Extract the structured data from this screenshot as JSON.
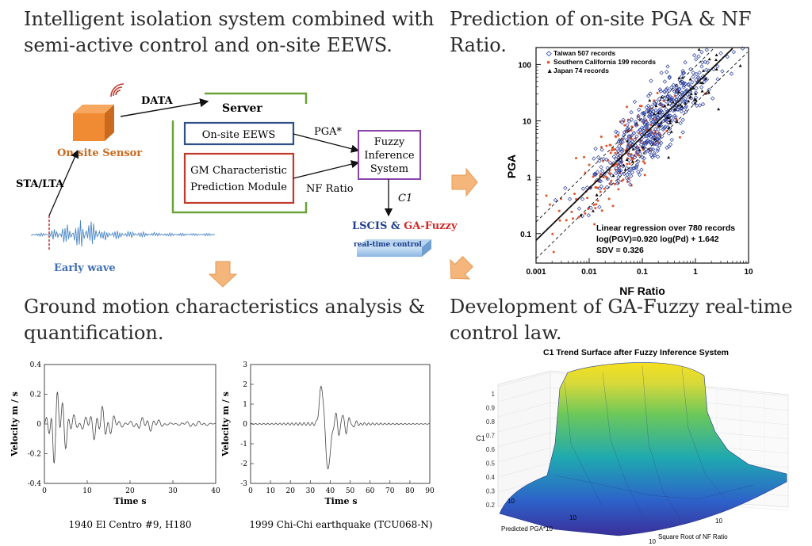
{
  "quadrant1": {
    "heading_line1": "Intelligent isolation system combined with",
    "heading_line2": "semi-active control and on-site EEWS.",
    "data_label": "DATA",
    "server_label": "Server",
    "sensor_label": "On-site Sensor",
    "sta_lta_label": "STA/LTA",
    "early_wave_label": "Early wave",
    "eews_box": "On-site EEWS",
    "gm_box_line1": "GM Characteristic",
    "gm_box_line2": "Prediction Module",
    "pga_star": "PGA*",
    "nf_ratio": "NF Ratio",
    "fuzzy_line1": "Fuzzy",
    "fuzzy_line2": "Inference",
    "fuzzy_line3": "System",
    "c1_label": "C1",
    "lscis_label": "LSCIS & ",
    "ga_fuzzy_label": "GA-Fuzzy",
    "realtime_label": "real-time control",
    "colors": {
      "sensor": "#f08a33",
      "eews_border": "#2f4f8a",
      "gm_border": "#c0392b",
      "fuzzy_border": "#8e44ad",
      "server_frame": "#6aa33a",
      "wave": "#4a86c8",
      "lscis": "#1f3e8c",
      "ga_fuzzy": "#d02a2a"
    }
  },
  "quadrant2": {
    "heading": "Prediction of on-site PGA & NF Ratio.",
    "chart_data": {
      "type": "scatter",
      "xlabel": "NF Ratio",
      "ylabel": "PGA",
      "x_scale": "log",
      "y_scale": "log",
      "xlim": [
        0.001,
        10
      ],
      "ylim": [
        0.03,
        200
      ],
      "x_ticks": [
        "0.001",
        "0.01",
        "0.1",
        "1",
        "10"
      ],
      "y_ticks": [
        "0.1",
        "1",
        "10",
        "100"
      ],
      "legend": [
        "Taiwan 507 records",
        "Southern California 199 records",
        "Japan 74 records"
      ],
      "legend_position": "top-left",
      "annotation_line1": "Linear regression over 780 records",
      "annotation_line2": "log(PGV)=0.920 log(Pd) + 1.642",
      "annotation_line3": "SDV = 0.326",
      "regression": {
        "slope": 0.92,
        "intercept": 1.642
      },
      "series_colors": {
        "taiwan": "#2a3f9e",
        "socal": "#e2552a",
        "japan": "#111111"
      }
    }
  },
  "quadrant3": {
    "heading_line1": "Ground motion characteristics analysis &",
    "heading_line2": "quantification.",
    "plot1": {
      "ylabel": "Velocity   m / s",
      "xlabel": "Time s",
      "x_ticks": [
        "0",
        "10",
        "20",
        "30",
        "40"
      ],
      "y_ticks": [
        "0.4",
        "0.2",
        "0",
        "-0.2",
        "-0.4"
      ],
      "caption": "1940 El Centro #9, H180"
    },
    "plot2": {
      "ylabel": "Velocity   m / s",
      "xlabel": "Time s",
      "x_ticks": [
        "0",
        "10",
        "20",
        "30",
        "40",
        "50",
        "60",
        "70",
        "80",
        "90"
      ],
      "y_ticks": [
        "3",
        "2",
        "1",
        "0",
        "-1",
        "-2",
        "-3"
      ],
      "caption": "1999 Chi-Chi earthquake (TCU068-N)"
    }
  },
  "quadrant4": {
    "heading_line1": "Development of GA-Fuzzy real-time",
    "heading_line2": "control law.",
    "surface_title": "C1 Trend Surface after Fuzzy Inference System",
    "z_label": "C1",
    "z_ticks": [
      "1",
      "0.9",
      "0.8",
      "0.7",
      "0.6",
      "0.5",
      "0.4",
      "0.3",
      "0.2"
    ],
    "x_label": "Predicted PGA*10",
    "y_label": "Square Root of NF Ratio",
    "x_ticks": [
      "10",
      "10"
    ],
    "y_ticks": [
      "10",
      "10"
    ]
  }
}
